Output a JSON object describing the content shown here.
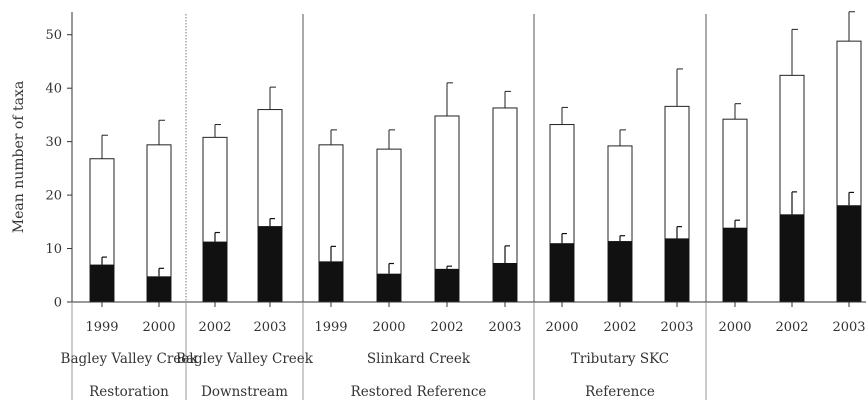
{
  "chart_data": {
    "type": "bar",
    "ylabel": "Mean number of taxa",
    "ylim": [
      0,
      55
    ],
    "yticks": [
      0,
      10,
      20,
      30,
      40,
      50
    ],
    "bars": [
      {
        "year": "1999",
        "total": 26.8,
        "total_err": 31.2,
        "dark": 7.0,
        "dark_err": 8.4
      },
      {
        "year": "2000",
        "total": 29.4,
        "total_err": 34.0,
        "dark": 4.8,
        "dark_err": 6.3
      },
      {
        "year": "2002",
        "total": 30.8,
        "total_err": 33.2,
        "dark": 11.3,
        "dark_err": 13.0
      },
      {
        "year": "2003",
        "total": 36.0,
        "total_err": 40.2,
        "dark": 14.2,
        "dark_err": 15.6
      },
      {
        "year": "1999",
        "total": 29.4,
        "total_err": 32.2,
        "dark": 7.6,
        "dark_err": 10.4
      },
      {
        "year": "2000",
        "total": 28.6,
        "total_err": 32.2,
        "dark": 5.3,
        "dark_err": 7.2
      },
      {
        "year": "2002",
        "total": 34.8,
        "total_err": 41.0,
        "dark": 6.2,
        "dark_err": 6.7
      },
      {
        "year": "2003",
        "total": 36.3,
        "total_err": 39.4,
        "dark": 7.3,
        "dark_err": 10.5
      },
      {
        "year": "2000",
        "total": 33.2,
        "total_err": 36.4,
        "dark": 11.0,
        "dark_err": 12.8
      },
      {
        "year": "2002",
        "total": 29.2,
        "total_err": 32.2,
        "dark": 11.4,
        "dark_err": 12.4
      },
      {
        "year": "2003",
        "total": 36.6,
        "total_err": 43.6,
        "dark": 11.9,
        "dark_err": 14.1
      },
      {
        "year": "2000",
        "total": 34.2,
        "total_err": 37.1,
        "dark": 13.9,
        "dark_err": 15.3
      },
      {
        "year": "2002",
        "total": 42.4,
        "total_err": 51.0,
        "dark": 16.4,
        "dark_err": 20.6
      },
      {
        "year": "2003",
        "total": 48.8,
        "total_err": 54.3,
        "dark": 18.1,
        "dark_err": 20.5
      }
    ],
    "groups": [
      {
        "name": "Bagley Valley Creek",
        "category": "Restoration",
        "start": 0,
        "count": 4
      },
      {
        "name": "Bagley Valley Creek",
        "category": "Downstream",
        "start": 4,
        "count": 4
      },
      {
        "name": "Slinkard Creek",
        "category": "Restored Reference",
        "start": 8,
        "count": 3
      },
      {
        "name": "Tributary SKC",
        "category": "Reference",
        "start": 11,
        "count": 3
      }
    ],
    "inner_dotted_divider_after_bar": 1,
    "colors": {
      "total": "#ffffff",
      "dark": "#111111",
      "axis": "#333333"
    }
  }
}
